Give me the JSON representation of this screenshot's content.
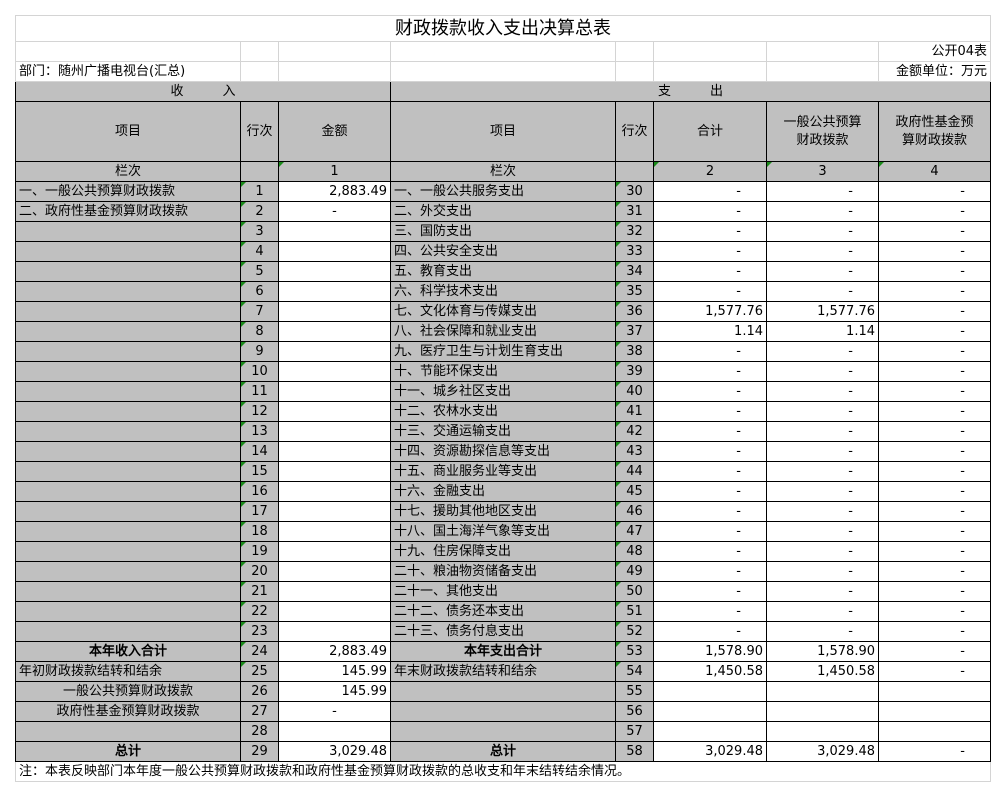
{
  "title": "财政拨款收入支出决算总表",
  "form_no": "公开04表",
  "department": "部门：随州广播电视台(汇总)",
  "unit": "金额单位：万元",
  "income_header": "收　　　入",
  "expense_header": "支　　　出",
  "columns": {
    "item": "项目",
    "row_no": "行次",
    "amount": "金额",
    "total": "合计",
    "general": "一般公共预算财政拨款",
    "fund": "政府性基金预算财政拨款"
  },
  "column_index": {
    "label": "栏次",
    "c1": "1",
    "c2": "2",
    "c3": "3",
    "c4": "4"
  },
  "income_rows": [
    {
      "item": "一、一般公共预算财政拨款",
      "no": "1",
      "amount": "2,883.49"
    },
    {
      "item": "二、政府性基金预算财政拨款",
      "no": "2",
      "amount": "-"
    },
    {
      "item": "",
      "no": "3",
      "amount": ""
    },
    {
      "item": "",
      "no": "4",
      "amount": ""
    },
    {
      "item": "",
      "no": "5",
      "amount": ""
    },
    {
      "item": "",
      "no": "6",
      "amount": ""
    },
    {
      "item": "",
      "no": "7",
      "amount": ""
    },
    {
      "item": "",
      "no": "8",
      "amount": ""
    },
    {
      "item": "",
      "no": "9",
      "amount": ""
    },
    {
      "item": "",
      "no": "10",
      "amount": ""
    },
    {
      "item": "",
      "no": "11",
      "amount": ""
    },
    {
      "item": "",
      "no": "12",
      "amount": ""
    },
    {
      "item": "",
      "no": "13",
      "amount": ""
    },
    {
      "item": "",
      "no": "14",
      "amount": ""
    },
    {
      "item": "",
      "no": "15",
      "amount": ""
    },
    {
      "item": "",
      "no": "16",
      "amount": ""
    },
    {
      "item": "",
      "no": "17",
      "amount": ""
    },
    {
      "item": "",
      "no": "18",
      "amount": ""
    },
    {
      "item": "",
      "no": "19",
      "amount": ""
    },
    {
      "item": "",
      "no": "20",
      "amount": ""
    },
    {
      "item": "",
      "no": "21",
      "amount": ""
    },
    {
      "item": "",
      "no": "22",
      "amount": ""
    },
    {
      "item": "",
      "no": "23",
      "amount": ""
    }
  ],
  "expense_rows": [
    {
      "item": "一、一般公共服务支出",
      "no": "30",
      "total": "-",
      "general": "-",
      "fund": "-"
    },
    {
      "item": "二、外交支出",
      "no": "31",
      "total": "-",
      "general": "-",
      "fund": "-"
    },
    {
      "item": "三、国防支出",
      "no": "32",
      "total": "-",
      "general": "-",
      "fund": "-"
    },
    {
      "item": "四、公共安全支出",
      "no": "33",
      "total": "-",
      "general": "-",
      "fund": "-"
    },
    {
      "item": "五、教育支出",
      "no": "34",
      "total": "-",
      "general": "-",
      "fund": "-"
    },
    {
      "item": "六、科学技术支出",
      "no": "35",
      "total": "-",
      "general": "-",
      "fund": "-"
    },
    {
      "item": "七、文化体育与传媒支出",
      "no": "36",
      "total": "1,577.76",
      "general": "1,577.76",
      "fund": "-"
    },
    {
      "item": "八、社会保障和就业支出",
      "no": "37",
      "total": "1.14",
      "general": "1.14",
      "fund": "-"
    },
    {
      "item": "九、医疗卫生与计划生育支出",
      "no": "38",
      "total": "-",
      "general": "-",
      "fund": "-"
    },
    {
      "item": "十、节能环保支出",
      "no": "39",
      "total": "-",
      "general": "-",
      "fund": "-"
    },
    {
      "item": "十一、城乡社区支出",
      "no": "40",
      "total": "-",
      "general": "-",
      "fund": "-"
    },
    {
      "item": "十二、农林水支出",
      "no": "41",
      "total": "-",
      "general": "-",
      "fund": "-"
    },
    {
      "item": "十三、交通运输支出",
      "no": "42",
      "total": "-",
      "general": "-",
      "fund": "-"
    },
    {
      "item": "十四、资源勘探信息等支出",
      "no": "43",
      "total": "-",
      "general": "-",
      "fund": "-"
    },
    {
      "item": "十五、商业服务业等支出",
      "no": "44",
      "total": "-",
      "general": "-",
      "fund": "-"
    },
    {
      "item": "十六、金融支出",
      "no": "45",
      "total": "-",
      "general": "-",
      "fund": "-"
    },
    {
      "item": "十七、援助其他地区支出",
      "no": "46",
      "total": "-",
      "general": "-",
      "fund": "-"
    },
    {
      "item": "十八、国土海洋气象等支出",
      "no": "47",
      "total": "-",
      "general": "-",
      "fund": "-"
    },
    {
      "item": "十九、住房保障支出",
      "no": "48",
      "total": "-",
      "general": "-",
      "fund": "-"
    },
    {
      "item": "二十、粮油物资储备支出",
      "no": "49",
      "total": "-",
      "general": "-",
      "fund": "-"
    },
    {
      "item": "二十一、其他支出",
      "no": "50",
      "total": "-",
      "general": "-",
      "fund": "-"
    },
    {
      "item": "二十二、债务还本支出",
      "no": "51",
      "total": "-",
      "general": "-",
      "fund": "-"
    },
    {
      "item": "二十三、债务付息支出",
      "no": "52",
      "total": "-",
      "general": "-",
      "fund": "-"
    }
  ],
  "summary_rows": [
    {
      "l_item": "本年收入合计",
      "l_no": "24",
      "l_amount": "2,883.49",
      "r_item": "本年支出合计",
      "r_no": "53",
      "total": "1,578.90",
      "general": "1,578.90",
      "fund": "-",
      "bold": true,
      "align": "c"
    },
    {
      "l_item": "年初财政拨款结转和结余",
      "l_no": "25",
      "l_amount": "145.99",
      "r_item": "年末财政拨款结转和结余",
      "r_no": "54",
      "total": "1,450.58",
      "general": "1,450.58",
      "fund": "-",
      "bold": false,
      "align": "l"
    },
    {
      "l_item": "一般公共预算财政拨款",
      "l_no": "26",
      "l_amount": "145.99",
      "r_item": "",
      "r_no": "55",
      "total": "",
      "general": "",
      "fund": "",
      "bold": false,
      "align": "c"
    },
    {
      "l_item": "政府性基金预算财政拨款",
      "l_no": "27",
      "l_amount": "-",
      "r_item": "",
      "r_no": "56",
      "total": "",
      "general": "",
      "fund": "",
      "bold": false,
      "align": "c"
    },
    {
      "l_item": "",
      "l_no": "28",
      "l_amount": "",
      "r_item": "",
      "r_no": "57",
      "total": "",
      "general": "",
      "fund": "",
      "bold": false,
      "align": "c"
    },
    {
      "l_item": "总计",
      "l_no": "29",
      "l_amount": "3,029.48",
      "r_item": "总计",
      "r_no": "58",
      "total": "3,029.48",
      "general": "3,029.48",
      "fund": "-",
      "bold": true,
      "align": "c"
    }
  ],
  "note": "注：本表反映部门本年度一般公共预算财政拨款和政府性基金预算财政拨款的总收支和年末结转结余情况。"
}
